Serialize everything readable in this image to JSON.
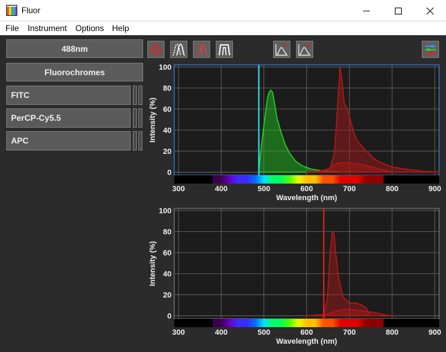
{
  "window": {
    "title": "Fluor"
  },
  "menu": [
    "File",
    "Instrument",
    "Options",
    "Help"
  ],
  "left_panel": {
    "laser_button": "488nm",
    "fluorochromes_button": "Fluorochromes",
    "fluorochromes": [
      "FITC",
      "PerCP-Cy5.5",
      "APC"
    ]
  },
  "toolbar": {
    "icons": [
      "laser-icon",
      "excitation-spectra-icon",
      "emission-spectra-icon",
      "filter-icon",
      "add-spectrum-icon",
      "remove-spectrum-icon",
      "settings-icon"
    ]
  },
  "colors": {
    "fitc": "#22cc22",
    "percp": "#b01818",
    "apc": "#b01818",
    "laser_488": "#33d9f0",
    "laser_633": "#e02020",
    "panel_bg": "#1c1c1c"
  },
  "chart_data": [
    {
      "type": "area",
      "xlabel": "Wavelength (nm)",
      "ylabel": "Intensity (%)",
      "xlim": [
        290,
        910
      ],
      "ylim": [
        -3,
        102
      ],
      "x_ticks": [
        300,
        400,
        500,
        600,
        700,
        800,
        900
      ],
      "y_ticks": [
        0,
        20,
        40,
        60,
        80,
        100
      ],
      "grid": true,
      "laser_line": 488,
      "series": [
        {
          "color_key": "fitc",
          "x": [
            488,
            492,
            500,
            508,
            512,
            516,
            520,
            525,
            530,
            540,
            550,
            560,
            575,
            590,
            610,
            640,
            680,
            720
          ],
          "y": [
            0,
            18,
            45,
            70,
            76,
            78,
            76,
            65,
            52,
            38,
            26,
            18,
            10,
            6,
            3,
            1,
            0.3,
            0
          ]
        },
        {
          "color_key": "percp",
          "x": [
            600,
            640,
            655,
            665,
            672,
            678,
            682,
            688,
            695,
            702,
            710,
            718,
            725,
            735,
            745,
            760,
            780,
            800,
            830,
            870,
            910
          ],
          "y": [
            0,
            1,
            4,
            18,
            60,
            100,
            90,
            65,
            60,
            50,
            38,
            30,
            27,
            22,
            18,
            12,
            8,
            5,
            3,
            1,
            0
          ]
        },
        {
          "color_key": "apc",
          "x": [
            600,
            630,
            650,
            660,
            670,
            680,
            700,
            720,
            740,
            760,
            780,
            800
          ],
          "y": [
            0,
            1,
            3,
            6,
            8,
            9,
            9,
            8,
            6,
            4,
            2,
            0
          ]
        }
      ]
    },
    {
      "type": "area",
      "xlabel": "Wavelength (nm)",
      "ylabel": "Intensity (%)",
      "xlim": [
        290,
        910
      ],
      "ylim": [
        -3,
        102
      ],
      "x_ticks": [
        300,
        400,
        500,
        600,
        700,
        800,
        900
      ],
      "y_ticks": [
        0,
        20,
        40,
        60,
        80,
        100
      ],
      "grid": true,
      "laser_line": 640,
      "series": [
        {
          "color_key": "apc",
          "x": [
            620,
            640,
            648,
            655,
            660,
            664,
            668,
            675,
            685,
            700,
            715,
            730,
            740,
            745,
            750
          ],
          "y": [
            0,
            1,
            15,
            60,
            80,
            78,
            60,
            35,
            18,
            12,
            12,
            10,
            7,
            3,
            0
          ]
        },
        {
          "color_key": "percp",
          "x": [
            600,
            640,
            660,
            675,
            685,
            700,
            720,
            740,
            760,
            780,
            800
          ],
          "y": [
            0,
            1,
            3,
            5,
            6,
            6,
            5,
            4,
            3,
            1,
            0
          ]
        }
      ]
    }
  ]
}
